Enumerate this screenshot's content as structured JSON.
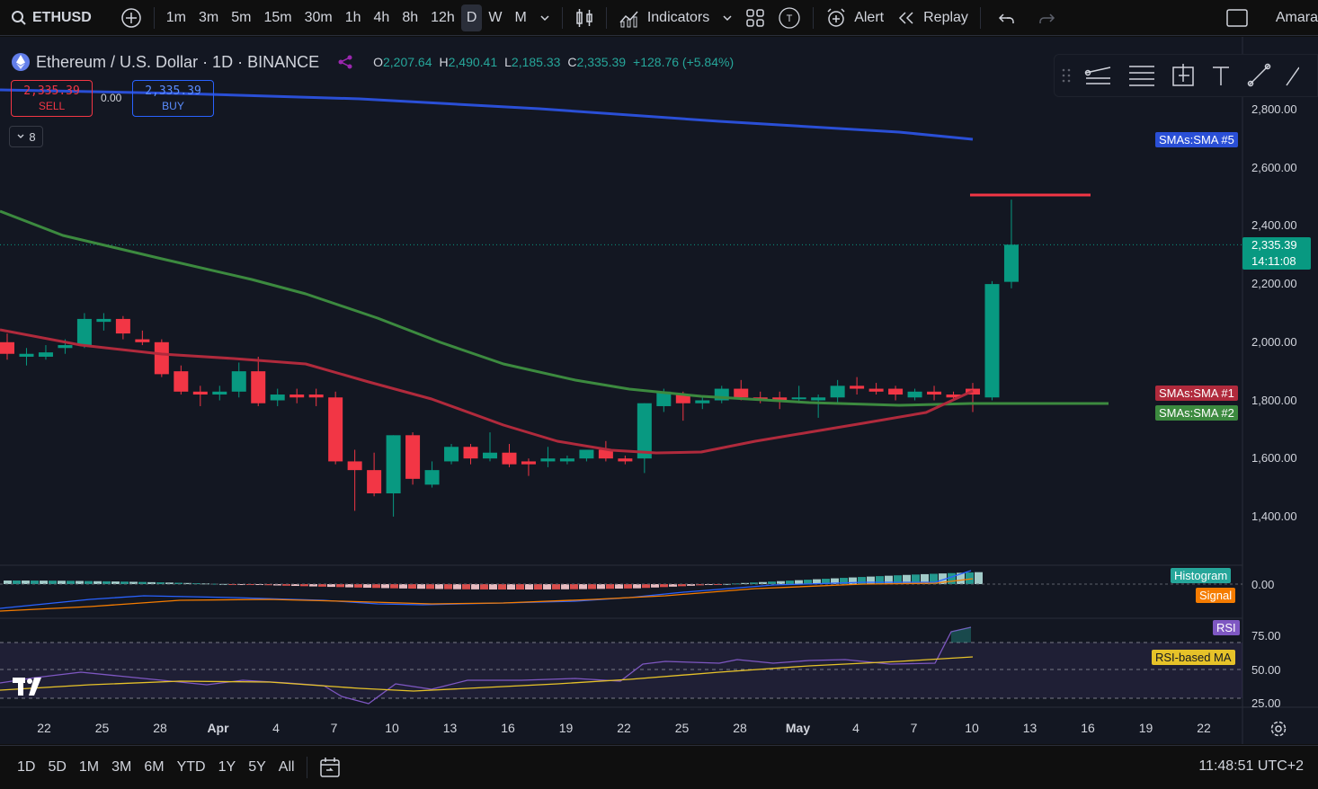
{
  "toolbar": {
    "symbol": "ETHUSD",
    "intervals": [
      "1m",
      "3m",
      "5m",
      "15m",
      "30m",
      "1h",
      "4h",
      "8h",
      "12h",
      "D",
      "W",
      "M"
    ],
    "active_interval": "D",
    "indicators_label": "Indicators",
    "alert_label": "Alert",
    "replay_label": "Replay",
    "user_name": "Amara"
  },
  "legend": {
    "title": "Ethereum / U.S. Dollar · 1D · BINANCE",
    "o_key": "O",
    "o_val": "2,207.64",
    "h_key": "H",
    "h_val": "2,490.41",
    "l_key": "L",
    "l_val": "2,185.33",
    "c_key": "C",
    "c_val": "2,335.39",
    "change": "+128.76 (+5.84%)"
  },
  "trade": {
    "sell_price": "2,335.39",
    "sell_label": "SELL",
    "spread": "0.00",
    "buy_price": "2,335.39",
    "buy_label": "BUY",
    "collapse_count": "8"
  },
  "price_axis": {
    "labels": [
      "2,800.00",
      "2,600.00",
      "2,400.00",
      "2,200.00",
      "2,000.00",
      "1,800.00",
      "1,600.00",
      "1,400.00"
    ],
    "current_price": "2,335.39",
    "countdown": "14:11:08",
    "macd_zero": "0.00",
    "rsi_labels": [
      "75.00",
      "50.00",
      "25.00"
    ]
  },
  "tags": {
    "sma5": "SMAs:SMA #5",
    "sma1": "SMAs:SMA #1",
    "sma2": "SMAs:SMA #2",
    "histogram": "Histogram",
    "signal": "Signal",
    "rsi": "RSI",
    "rsi_ma": "RSI-based MA"
  },
  "time_axis": [
    "22",
    "25",
    "28",
    "Apr",
    "4",
    "7",
    "10",
    "13",
    "16",
    "19",
    "22",
    "25",
    "28",
    "May",
    "4",
    "7",
    "10",
    "13",
    "16",
    "19",
    "22"
  ],
  "bottom": {
    "ranges": [
      "1D",
      "5D",
      "1M",
      "3M",
      "6M",
      "YTD",
      "1Y",
      "5Y",
      "All"
    ],
    "clock": "11:48:51 UTC+2"
  },
  "colors": {
    "up": "#089981",
    "down": "#f23645",
    "sma5": "#2a4fd6",
    "sma1": "#b02a3c",
    "sma2": "#3c8a3f",
    "rsi": "#7e57c2",
    "rsi_ma": "#e6c229",
    "signal": "#f57c00",
    "macd": "#2962ff"
  },
  "chart_data": {
    "type": "candlestick",
    "price_range": [
      1300,
      2900
    ],
    "candles": [
      [
        2000,
        2030,
        1940,
        1960
      ],
      [
        1950,
        1980,
        1920,
        1960
      ],
      [
        1950,
        1990,
        1940,
        1965
      ],
      [
        1980,
        2010,
        1960,
        1990
      ],
      [
        1990,
        2100,
        1980,
        2080
      ],
      [
        2070,
        2100,
        2040,
        2080
      ],
      [
        2080,
        2090,
        2010,
        2030
      ],
      [
        2010,
        2040,
        1990,
        2000
      ],
      [
        2000,
        2010,
        1880,
        1890
      ],
      [
        1900,
        1920,
        1820,
        1830
      ],
      [
        1830,
        1850,
        1780,
        1820
      ],
      [
        1820,
        1850,
        1800,
        1830
      ],
      [
        1830,
        1930,
        1810,
        1900
      ],
      [
        1900,
        1950,
        1780,
        1790
      ],
      [
        1800,
        1840,
        1780,
        1820
      ],
      [
        1820,
        1840,
        1790,
        1810
      ],
      [
        1820,
        1840,
        1780,
        1810
      ],
      [
        1810,
        1830,
        1580,
        1590
      ],
      [
        1590,
        1630,
        1420,
        1560
      ],
      [
        1560,
        1620,
        1470,
        1480
      ],
      [
        1480,
        1680,
        1400,
        1680
      ],
      [
        1680,
        1690,
        1510,
        1530
      ],
      [
        1510,
        1590,
        1500,
        1560
      ],
      [
        1590,
        1650,
        1580,
        1640
      ],
      [
        1640,
        1650,
        1580,
        1600
      ],
      [
        1600,
        1690,
        1590,
        1620
      ],
      [
        1620,
        1650,
        1570,
        1580
      ],
      [
        1590,
        1600,
        1540,
        1580
      ],
      [
        1590,
        1640,
        1570,
        1600
      ],
      [
        1590,
        1610,
        1580,
        1600
      ],
      [
        1600,
        1630,
        1590,
        1630
      ],
      [
        1630,
        1660,
        1590,
        1600
      ],
      [
        1600,
        1610,
        1580,
        1590
      ],
      [
        1600,
        1790,
        1550,
        1790
      ],
      [
        1780,
        1840,
        1760,
        1830
      ],
      [
        1820,
        1830,
        1730,
        1790
      ],
      [
        1790,
        1810,
        1770,
        1800
      ],
      [
        1800,
        1850,
        1790,
        1840
      ],
      [
        1840,
        1870,
        1800,
        1810
      ],
      [
        1810,
        1830,
        1790,
        1800
      ],
      [
        1810,
        1830,
        1770,
        1800
      ],
      [
        1810,
        1850,
        1790,
        1810
      ],
      [
        1800,
        1820,
        1740,
        1810
      ],
      [
        1810,
        1870,
        1790,
        1850
      ],
      [
        1850,
        1880,
        1820,
        1840
      ],
      [
        1840,
        1860,
        1820,
        1830
      ],
      [
        1840,
        1850,
        1800,
        1820
      ],
      [
        1810,
        1840,
        1800,
        1830
      ],
      [
        1830,
        1850,
        1800,
        1820
      ],
      [
        1820,
        1830,
        1800,
        1810
      ],
      [
        1840,
        1860,
        1760,
        1820
      ],
      [
        1810,
        2210,
        1800,
        2200
      ],
      [
        2207.64,
        2490.41,
        2185.33,
        2335.39
      ]
    ]
  }
}
